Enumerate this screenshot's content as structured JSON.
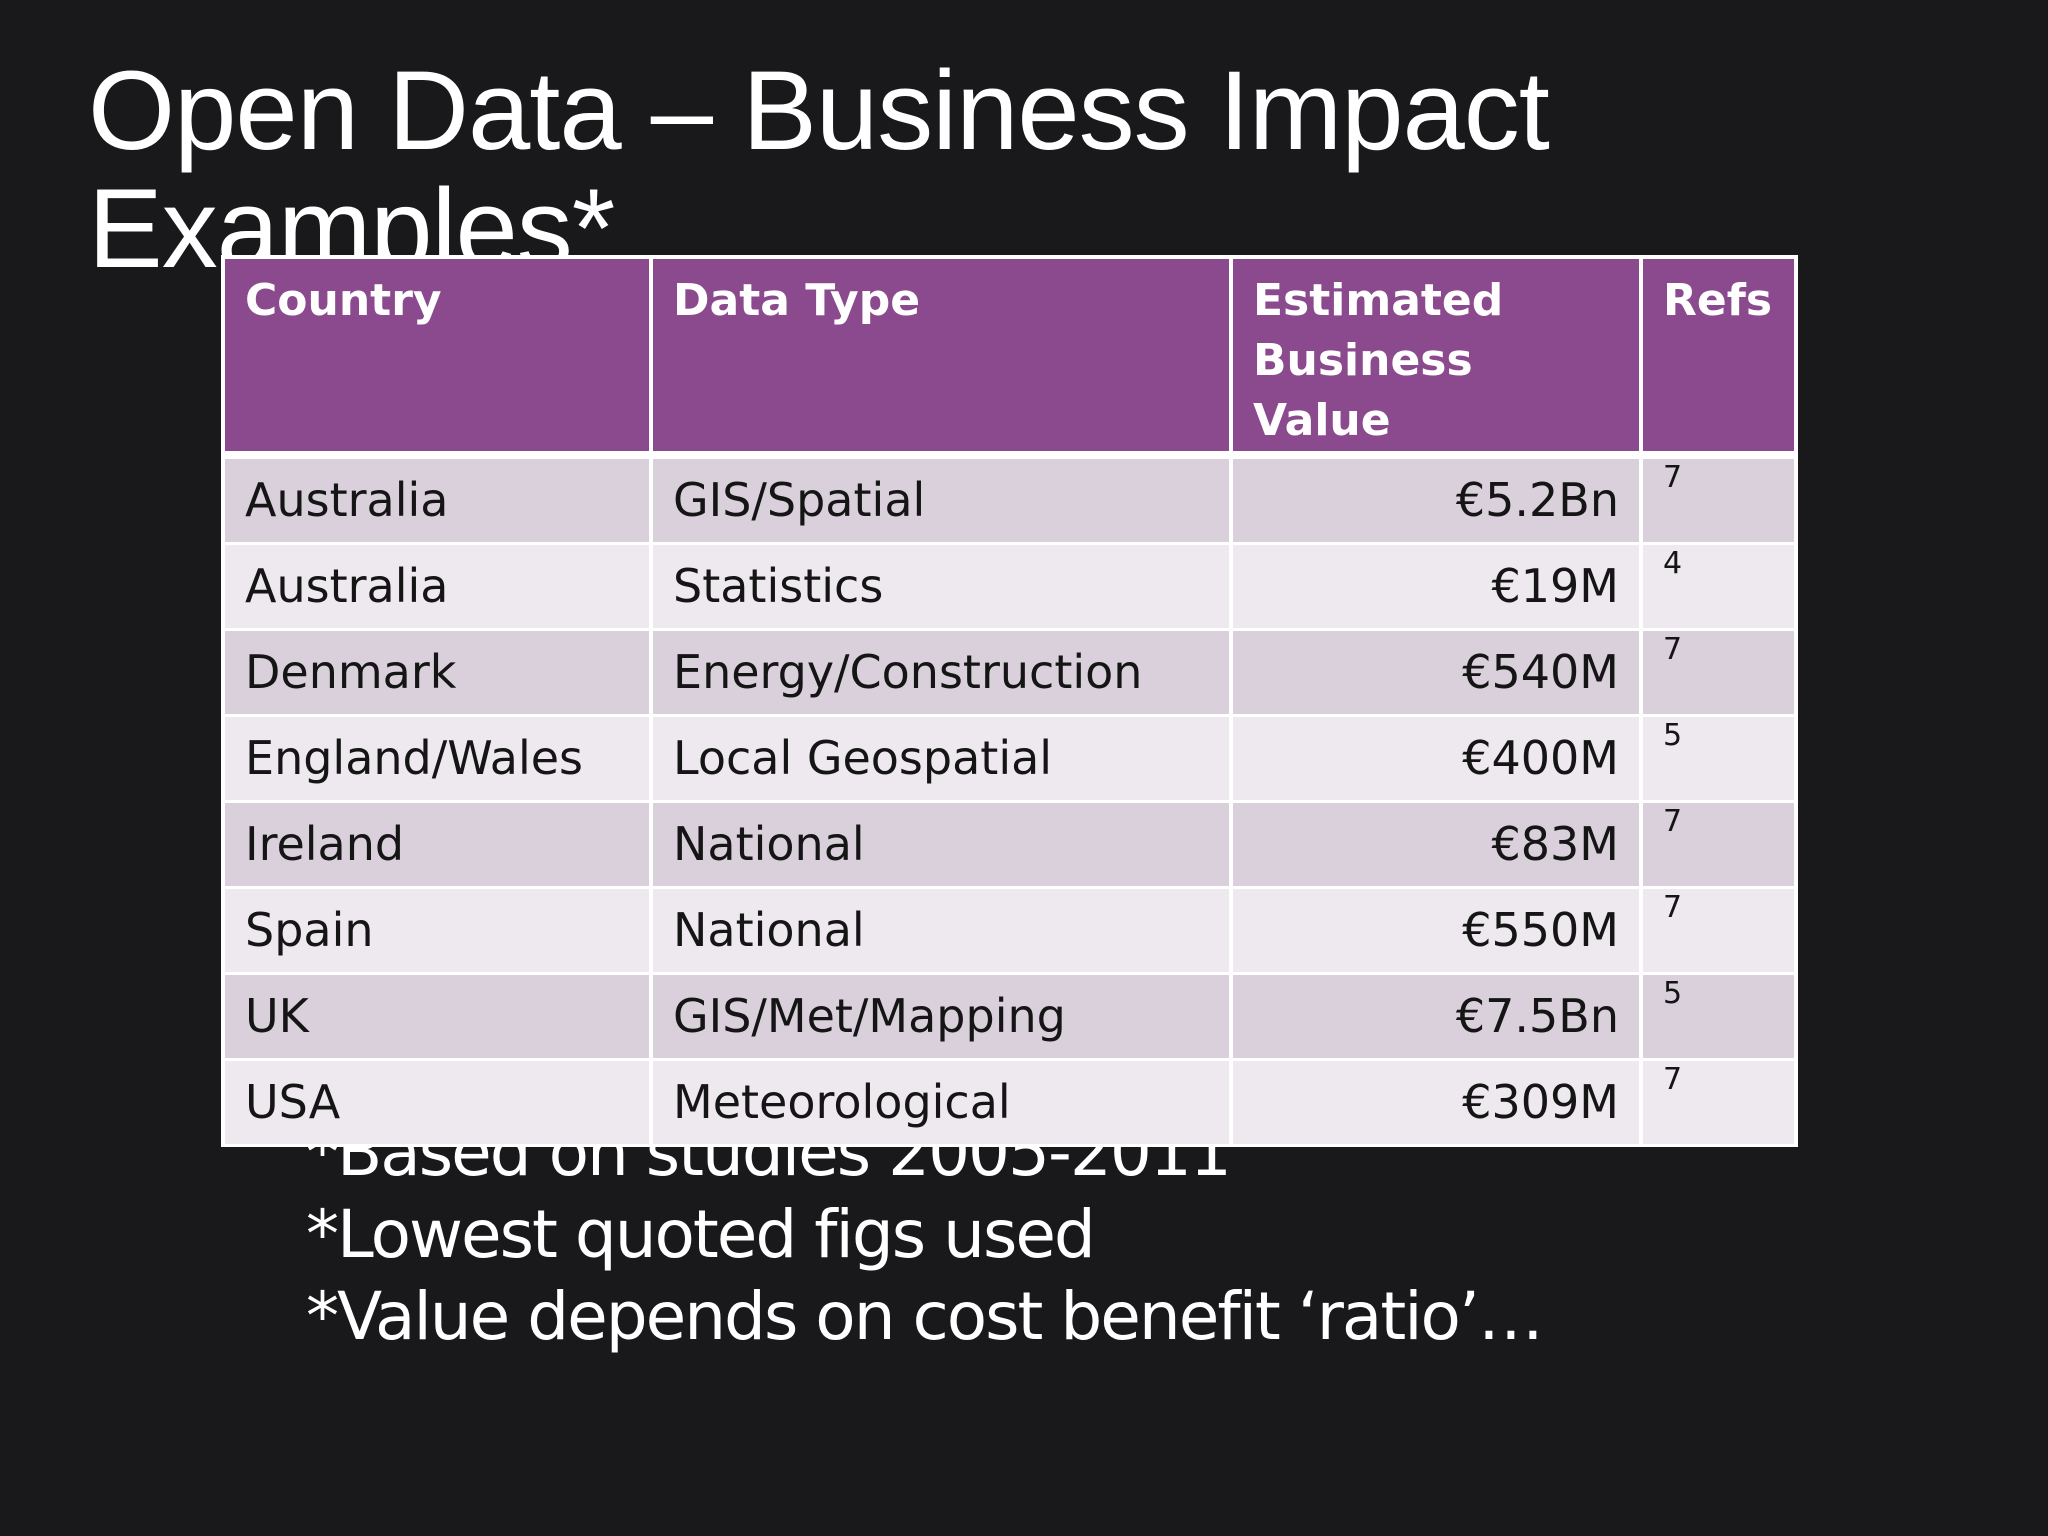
{
  "slide": {
    "title_lines": [
      "Open Data – Business Impact",
      "Examples*"
    ]
  },
  "table": {
    "headers": {
      "country": "Country",
      "data_type": "Data Type",
      "value_line1": "Estimated",
      "value_line2": "Business Value",
      "refs": "Refs"
    },
    "rows": [
      {
        "country": "Australia",
        "data_type": "GIS/Spatial",
        "value": "€5.2Bn",
        "ref": "7"
      },
      {
        "country": "Australia",
        "data_type": "Statistics",
        "value": "€19M",
        "ref": "4"
      },
      {
        "country": "Denmark",
        "data_type": "Energy/Construction",
        "value": "€540M",
        "ref": "7"
      },
      {
        "country": "England/Wales",
        "data_type": "Local Geospatial",
        "value": "€400M",
        "ref": "5"
      },
      {
        "country": "Ireland",
        "data_type": "National",
        "value": "€83M",
        "ref": "7"
      },
      {
        "country": "Spain",
        "data_type": "National",
        "value": "€550M",
        "ref": "7"
      },
      {
        "country": "UK",
        "data_type": "GIS/Met/Mapping",
        "value": "€7.5Bn",
        "ref": "5"
      },
      {
        "country": "USA",
        "data_type": "Meteorological",
        "value": "€309M",
        "ref": "7"
      }
    ]
  },
  "footnotes": [
    "*Based on studies 2005-2011",
    "*Lowest quoted figs used",
    "*Value depends on cost benefit ‘ratio’…"
  ],
  "colors": {
    "background": "#19181b",
    "header_fill": "#8b4a8d",
    "row_odd": "#d9d0db",
    "row_even": "#ede9ee"
  }
}
